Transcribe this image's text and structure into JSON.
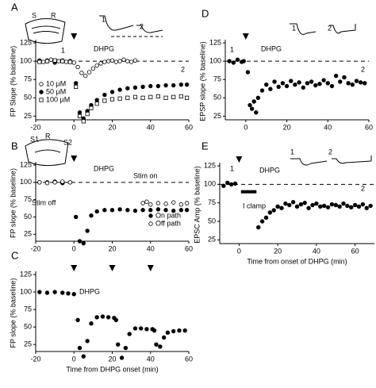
{
  "chart_data": [
    {
      "type": "scatter",
      "label": "A",
      "ylabel": "FP Slope (% baseline)",
      "xlim": [
        -20,
        60
      ],
      "ylim": [
        20,
        125
      ],
      "xticks": [
        -20,
        0,
        20,
        40,
        60
      ],
      "yticks": [
        25,
        50,
        75,
        100,
        125
      ],
      "hline": 100,
      "stimulus_x": [
        0
      ],
      "annotations": [
        "S",
        "R",
        "1",
        "2",
        "1",
        "2",
        "DHPG"
      ],
      "series": [
        {
          "name": "10 µM",
          "marker": "open-circle",
          "color": "#000000",
          "x": [
            -18,
            -16,
            -14,
            -12,
            -10,
            -8,
            -6,
            -4,
            -2,
            0,
            2,
            4,
            6,
            8,
            10,
            12,
            14,
            16,
            18,
            20,
            22,
            24,
            26,
            28,
            30,
            32
          ],
          "values": [
            101,
            99,
            100,
            102,
            98,
            100,
            101,
            99,
            100,
            98,
            92,
            84,
            80,
            85,
            90,
            94,
            97,
            99,
            100,
            101,
            99,
            100,
            102,
            100,
            99,
            101
          ]
        },
        {
          "name": "50 µM",
          "marker": "filled-circle",
          "color": "#000000",
          "x": [
            -18,
            -14,
            -10,
            -6,
            -2,
            1,
            3,
            5,
            7,
            9,
            12,
            16,
            20,
            24,
            28,
            32,
            36,
            40,
            44,
            48,
            52,
            56,
            59
          ],
          "values": [
            100,
            101,
            99,
            100,
            100,
            70,
            30,
            22,
            32,
            40,
            47,
            54,
            58,
            61,
            63,
            64,
            65,
            66,
            66,
            67,
            67,
            68,
            68
          ]
        },
        {
          "name": "100 µM",
          "marker": "open-square",
          "color": "#000000",
          "x": [
            -18,
            -14,
            -10,
            -6,
            -2,
            1,
            3,
            5,
            7,
            9,
            12,
            16,
            20,
            24,
            28,
            32,
            36,
            40,
            44,
            48,
            52,
            56,
            59
          ],
          "values": [
            99,
            100,
            101,
            100,
            99,
            65,
            25,
            18,
            28,
            36,
            42,
            46,
            48,
            49,
            50,
            51,
            50,
            51,
            52,
            50,
            51,
            52,
            50
          ]
        }
      ]
    },
    {
      "type": "scatter",
      "label": "B",
      "ylabel": "FP slope (% baseline)",
      "xlim": [
        -20,
        60
      ],
      "ylim": [
        15,
        125
      ],
      "xticks": [
        -20,
        0,
        20,
        40,
        60
      ],
      "yticks": [
        25,
        50,
        75,
        100,
        125
      ],
      "hline": 100,
      "stimulus_x": [
        0
      ],
      "annotations": [
        "S1",
        "R",
        "S2",
        "Stim off",
        "Stim on",
        "DHPG"
      ],
      "series": [
        {
          "name": "On path",
          "marker": "filled-circle",
          "color": "#000000",
          "x": [
            -18,
            -14,
            -10,
            -6,
            -2,
            1,
            3,
            5,
            7,
            9,
            12,
            16,
            20,
            24,
            28,
            32,
            36,
            40,
            44,
            48,
            52,
            56,
            59
          ],
          "values": [
            100,
            100,
            101,
            99,
            100,
            50,
            15,
            12,
            30,
            52,
            58,
            60,
            60,
            61,
            60,
            59,
            60,
            60,
            61,
            60,
            59,
            60,
            60
          ]
        },
        {
          "name": "Off path",
          "marker": "open-circle",
          "color": "#000000",
          "x": [
            -18,
            -14,
            -10,
            -6,
            -2,
            36,
            38,
            40,
            44,
            48,
            52,
            56,
            59
          ],
          "values": [
            100,
            99,
            100,
            101,
            100,
            70,
            72,
            68,
            70,
            69,
            71,
            68,
            70
          ]
        }
      ]
    },
    {
      "type": "scatter",
      "label": "C",
      "ylabel": "FP slope (% baseline)",
      "xlabel": "Time from DHPG onset (min)",
      "xlim": [
        -20,
        60
      ],
      "ylim": [
        15,
        125
      ],
      "xticks": [
        -20,
        0,
        20,
        40,
        60
      ],
      "yticks": [
        25,
        50,
        75,
        100,
        125
      ],
      "stimulus_x": [
        0,
        20,
        40
      ],
      "annotations": [
        "DHPG"
      ],
      "series": [
        {
          "marker": "filled-circle",
          "color": "#000000",
          "x": [
            -18,
            -14,
            -10,
            -6,
            -3,
            0,
            2,
            3,
            5,
            7,
            9,
            12,
            15,
            18,
            21,
            22,
            23,
            25,
            27,
            29,
            32,
            35,
            38,
            41,
            42,
            43,
            45,
            47,
            49,
            52,
            55,
            58
          ],
          "values": [
            100,
            99,
            100,
            99,
            98,
            97,
            60,
            20,
            8,
            30,
            55,
            64,
            65,
            64,
            63,
            60,
            25,
            6,
            20,
            40,
            48,
            48,
            47,
            47,
            45,
            25,
            22,
            35,
            42,
            44,
            45,
            45
          ]
        }
      ]
    },
    {
      "type": "scatter",
      "label": "D",
      "ylabel": "EPSP slope (% baseline)",
      "xlim": [
        -10,
        60
      ],
      "ylim": [
        20,
        125
      ],
      "xticks": [
        0,
        20,
        40,
        60
      ],
      "yticks": [
        25,
        50,
        75,
        100,
        125
      ],
      "hline": 100,
      "stimulus_x": [
        0
      ],
      "annotations": [
        "1",
        "DHPG",
        "2",
        "1",
        "2"
      ],
      "series": [
        {
          "marker": "filled-circle",
          "color": "#000000",
          "x": [
            -8,
            -6,
            -4,
            -2,
            -1,
            1,
            2,
            3,
            4,
            5,
            6,
            8,
            10,
            12,
            14,
            16,
            18,
            20,
            22,
            24,
            26,
            28,
            30,
            32,
            34,
            36,
            38,
            40,
            42,
            44,
            46,
            48,
            50,
            52,
            54,
            56,
            58
          ],
          "values": [
            100,
            98,
            102,
            99,
            100,
            85,
            40,
            35,
            45,
            30,
            50,
            60,
            68,
            62,
            72,
            65,
            70,
            66,
            73,
            68,
            71,
            64,
            70,
            72,
            67,
            69,
            74,
            70,
            66,
            80,
            72,
            78,
            70,
            68,
            73,
            71,
            70
          ]
        }
      ]
    },
    {
      "type": "scatter",
      "label": "E",
      "ylabel": "EPSC Amp (% baseline)",
      "xlabel": "Time from onset of DHPG (min)",
      "xlim": [
        -10,
        70
      ],
      "ylim": [
        20,
        125
      ],
      "xticks": [
        0,
        20,
        40,
        60
      ],
      "yticks": [
        25,
        50,
        75,
        100,
        125
      ],
      "hline": 100,
      "stimulus_x": [
        0
      ],
      "clamp": [
        1,
        9
      ],
      "annotations": [
        "1",
        "DHPG",
        "2",
        "I clamp",
        "1",
        "2"
      ],
      "series": [
        {
          "marker": "filled-circle",
          "color": "#000000",
          "x": [
            -8,
            -6,
            -4,
            -2,
            10,
            12,
            14,
            16,
            18,
            20,
            22,
            24,
            26,
            28,
            30,
            32,
            34,
            36,
            38,
            40,
            42,
            44,
            46,
            48,
            50,
            52,
            54,
            56,
            58,
            60,
            62,
            64,
            66,
            68
          ],
          "values": [
            98,
            102,
            100,
            101,
            42,
            50,
            55,
            62,
            65,
            70,
            68,
            74,
            72,
            76,
            70,
            73,
            75,
            68,
            72,
            74,
            70,
            71,
            69,
            73,
            72,
            70,
            74,
            71,
            69,
            72,
            70,
            73,
            68,
            71
          ]
        }
      ]
    }
  ]
}
